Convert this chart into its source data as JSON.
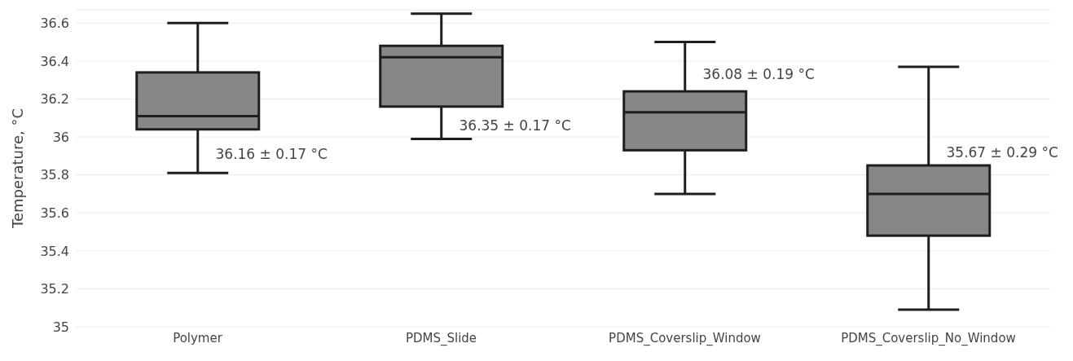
{
  "chart_data": {
    "type": "box",
    "ylabel": "Temperature, °C",
    "categories": [
      "Polymer",
      "PDMS_Slide",
      "PDMS_Coverslip_Window",
      "PDMS_Coverslip_No_Window"
    ],
    "boxes": [
      {
        "low": 35.81,
        "q1": 36.04,
        "median": 36.11,
        "q3": 36.34,
        "high": 36.6
      },
      {
        "low": 35.99,
        "q1": 36.16,
        "median": 36.42,
        "q3": 36.48,
        "high": 36.65
      },
      {
        "low": 35.7,
        "q1": 35.93,
        "median": 36.13,
        "q3": 36.24,
        "high": 36.5
      },
      {
        "low": 35.09,
        "q1": 35.48,
        "median": 35.7,
        "q3": 35.85,
        "high": 36.37
      }
    ],
    "color": "#878787",
    "ylim": [
      35,
      36.67
    ],
    "yticks": [
      35,
      35.2,
      35.4,
      35.6,
      35.8,
      36,
      36.2,
      36.4,
      36.6
    ],
    "grid": "y",
    "annotations": [
      {
        "text": "36.16 ± 0.17 °C",
        "x": "Polymer",
        "y": 35.91
      },
      {
        "text": "36.35 ± 0.17 °C",
        "x": "PDMS_Slide",
        "y": 36.06
      },
      {
        "text": "36.08 ± 0.19 °C",
        "x": "PDMS_Coverslip_Window",
        "y": 36.33
      },
      {
        "text": "35.67 ± 0.29 °C",
        "x": "PDMS_Coverslip_No_Window",
        "y": 35.92
      }
    ]
  }
}
